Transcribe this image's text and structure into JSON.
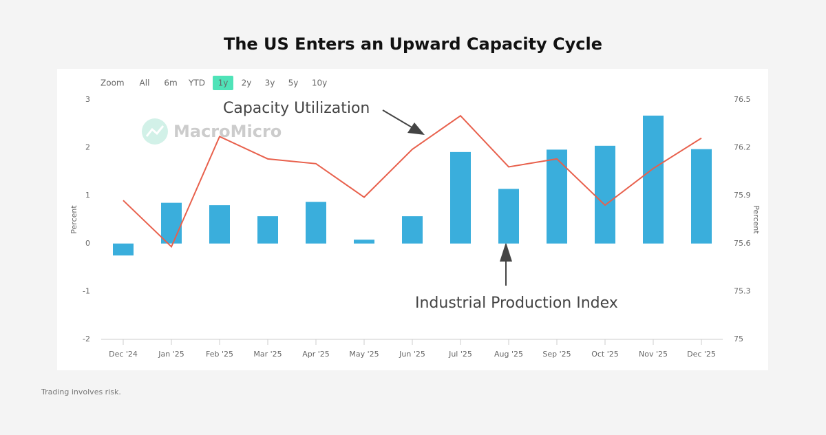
{
  "title": "The US Enters an Upward Capacity Cycle",
  "footer": "Trading involves risk.",
  "chart_data": {
    "type": "combo",
    "zoom_label": "Zoom",
    "zoom_options": [
      "All",
      "6m",
      "YTD",
      "1y",
      "2y",
      "3y",
      "5y",
      "10y"
    ],
    "zoom_selected": "1y",
    "watermark": "MacroMicro",
    "categories": [
      "Dec '24",
      "Jan '25",
      "Feb '25",
      "Mar '25",
      "Apr '25",
      "May '25",
      "Jun '25",
      "Jul '25",
      "Aug '25",
      "Sep '25",
      "Oct '25",
      "Nov '25",
      "Dec '25"
    ],
    "series": [
      {
        "name": "Industrial Production Index",
        "type": "bar",
        "color": "#3aaedc",
        "axis": "y",
        "values": [
          -0.25,
          0.85,
          0.8,
          0.57,
          0.87,
          0.08,
          0.57,
          1.91,
          1.14,
          1.96,
          2.04,
          2.67,
          1.97
        ]
      },
      {
        "name": "Capacity Utilization",
        "type": "line",
        "color": "#e8604c",
        "axis": "y2",
        "values": [
          75.87,
          75.58,
          76.27,
          76.13,
          76.1,
          75.89,
          76.19,
          76.4,
          76.08,
          76.13,
          75.84,
          76.07,
          76.26
        ]
      }
    ],
    "ylabel": "Percent",
    "y2label": "Percent",
    "ylim": [
      -2,
      3
    ],
    "yticks": [
      -2,
      -1,
      0,
      1,
      2,
      3
    ],
    "y2lim": [
      75,
      76.5
    ],
    "y2ticks": [
      75,
      75.3,
      75.6,
      75.9,
      76.2,
      76.5
    ],
    "grid": false
  }
}
